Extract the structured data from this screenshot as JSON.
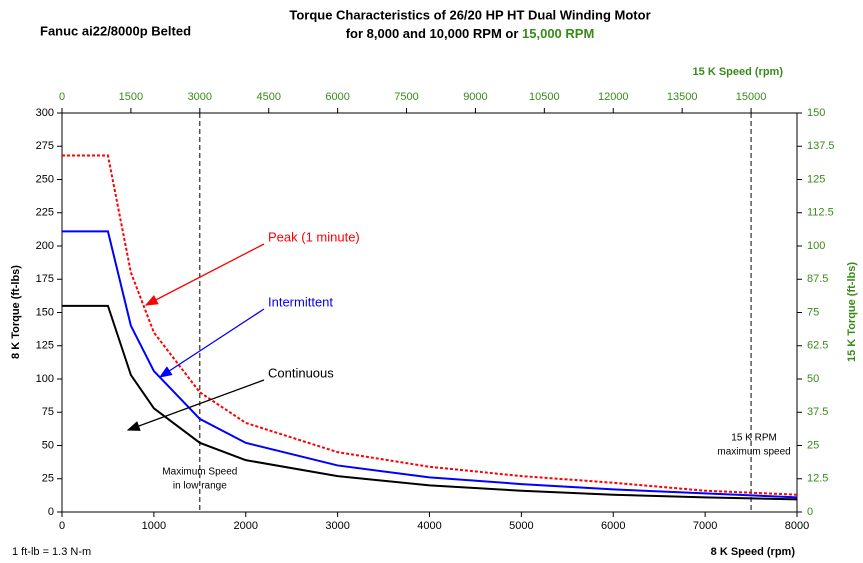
{
  "chart_data": {
    "type": "line",
    "subtitle_left": "Fanuc ai22/8000p Belted",
    "title": "Torque Characteristics of 26/20 HP HT Dual Winding Motor",
    "title_line2": "for 8,000 and 10,000 RPM or ",
    "title_line2_highlight": "15,000 RPM",
    "xlabel": "8 K Speed (rpm)",
    "ylabel": "8 K Torque (ft-lbs)",
    "x2label": "15 K Speed (rpm)",
    "y2label": "15 K Torque (ft-lbs)",
    "footnote": "1 ft-lb = 1.3 N-m",
    "secondary_color": "#3a8a1a",
    "xlim": [
      0,
      8000
    ],
    "xticks": [
      0,
      1000,
      2000,
      3000,
      4000,
      5000,
      6000,
      7000,
      8000
    ],
    "ylim": [
      0,
      300
    ],
    "yticks": [
      0,
      25,
      50,
      75,
      100,
      125,
      150,
      175,
      200,
      225,
      250,
      275,
      300
    ],
    "x2lim": [
      0,
      16000
    ],
    "x2ticks": [
      0,
      1500,
      3000,
      4500,
      6000,
      7500,
      9000,
      10500,
      12000,
      13500,
      15000
    ],
    "y2lim": [
      0,
      150
    ],
    "y2ticks": [
      0,
      12.5,
      25,
      37.5,
      50,
      62.5,
      75,
      87.5,
      100,
      112.5,
      125,
      137.5,
      150
    ],
    "grid": false,
    "x": [
      0,
      500,
      750,
      1000,
      1500,
      2000,
      3000,
      4000,
      5000,
      6000,
      7000,
      8000
    ],
    "series": [
      {
        "name": "Peak (1 minute)",
        "color": "#ff0000",
        "dashed": true,
        "values": [
          268,
          268,
          180,
          135,
          90,
          67,
          45,
          34,
          27,
          22,
          16,
          13
        ]
      },
      {
        "name": "Intermittent",
        "color": "#0000ff",
        "dashed": false,
        "values": [
          211,
          211,
          140,
          106,
          70,
          52,
          35,
          26,
          21,
          17,
          14,
          11
        ]
      },
      {
        "name": "Continuous",
        "color": "#000000",
        "dashed": false,
        "values": [
          155,
          155,
          103,
          78,
          52,
          39,
          27,
          20,
          16,
          13,
          11,
          9.5
        ]
      }
    ],
    "vlines": [
      {
        "x": 1500,
        "label": [
          "Maximum Speed",
          "in low range"
        ]
      },
      {
        "x": 7500,
        "label": [
          "15 K RPM",
          "maximum speed"
        ]
      }
    ]
  }
}
